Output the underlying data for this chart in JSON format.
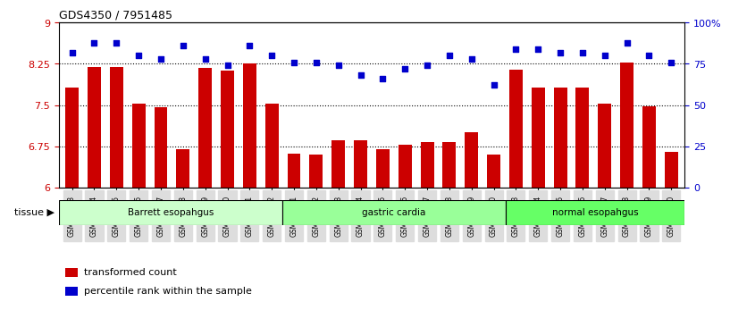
{
  "title": "GDS4350 / 7951485",
  "samples": [
    "GSM851983",
    "GSM851984",
    "GSM851985",
    "GSM851986",
    "GSM851987",
    "GSM851988",
    "GSM851989",
    "GSM851990",
    "GSM851991",
    "GSM851992",
    "GSM852001",
    "GSM852002",
    "GSM852003",
    "GSM852004",
    "GSM852005",
    "GSM852006",
    "GSM852007",
    "GSM852008",
    "GSM852009",
    "GSM852010",
    "GSM851993",
    "GSM851994",
    "GSM851995",
    "GSM851996",
    "GSM851997",
    "GSM851998",
    "GSM851999",
    "GSM852000"
  ],
  "bar_values": [
    7.82,
    8.2,
    8.2,
    7.52,
    7.46,
    6.7,
    8.18,
    8.13,
    8.25,
    7.53,
    6.62,
    6.6,
    6.85,
    6.85,
    6.7,
    6.78,
    6.83,
    6.83,
    7.0,
    6.6,
    8.15,
    7.82,
    7.82,
    7.82,
    7.52,
    8.27,
    7.48,
    6.65
  ],
  "dot_values": [
    82,
    88,
    88,
    80,
    78,
    86,
    78,
    74,
    86,
    80,
    76,
    76,
    74,
    68,
    66,
    72,
    74,
    80,
    78,
    62,
    84,
    84,
    82,
    82,
    80,
    88,
    80,
    76
  ],
  "groups": [
    {
      "label": "Barrett esopahgus",
      "start": 0,
      "end": 10,
      "color": "#ccffcc"
    },
    {
      "label": "gastric cardia",
      "start": 10,
      "end": 20,
      "color": "#99ff99"
    },
    {
      "label": "normal esopahgus",
      "start": 20,
      "end": 28,
      "color": "#66ff66"
    }
  ],
  "bar_color": "#cc0000",
  "dot_color": "#0000cc",
  "ylim_left": [
    6,
    9
  ],
  "ylim_right": [
    0,
    100
  ],
  "yticks_left": [
    6,
    6.75,
    7.5,
    8.25,
    9
  ],
  "ytick_labels_left": [
    "6",
    "6.75",
    "7.5",
    "8.25",
    "9"
  ],
  "yticks_right": [
    0,
    25,
    50,
    75,
    100
  ],
  "ytick_labels_right": [
    "0",
    "25",
    "50",
    "75",
    "100%"
  ],
  "hlines": [
    6.75,
    7.5,
    8.25
  ],
  "legend_items": [
    {
      "label": "transformed count",
      "color": "#cc0000",
      "marker": "s"
    },
    {
      "label": "percentile rank within the sample",
      "color": "#0000cc",
      "marker": "s"
    }
  ],
  "tissue_label": "tissue"
}
